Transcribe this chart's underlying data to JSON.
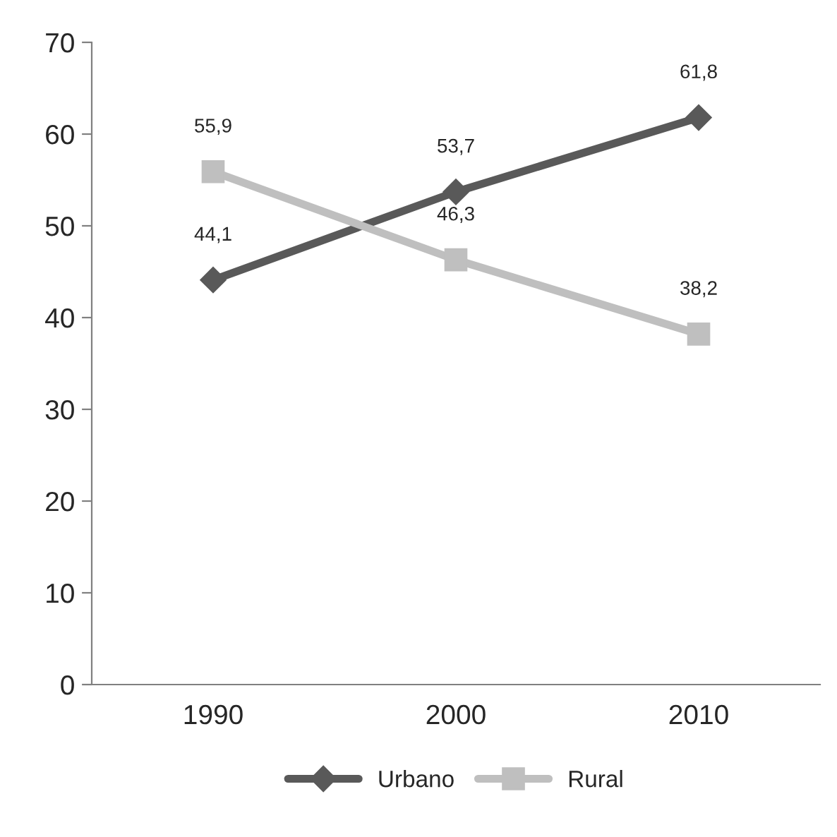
{
  "chart_data": {
    "type": "line",
    "categories": [
      "1990",
      "2000",
      "2010"
    ],
    "series": [
      {
        "name": "Urbano",
        "color": "#595959",
        "marker": "diamond",
        "values": [
          44.1,
          53.7,
          61.8
        ],
        "value_labels": [
          "44,1",
          "53,7",
          "61,8"
        ]
      },
      {
        "name": "Rural",
        "color": "#bfbfbf",
        "marker": "square",
        "values": [
          55.9,
          46.3,
          38.2
        ],
        "value_labels": [
          "55,9",
          "46,3",
          "38,2"
        ]
      }
    ],
    "ylim": [
      0,
      70
    ],
    "yticks": [
      0,
      10,
      20,
      30,
      40,
      50,
      60,
      70
    ],
    "grid": false,
    "legend": "bottom",
    "line_style": "solid"
  }
}
